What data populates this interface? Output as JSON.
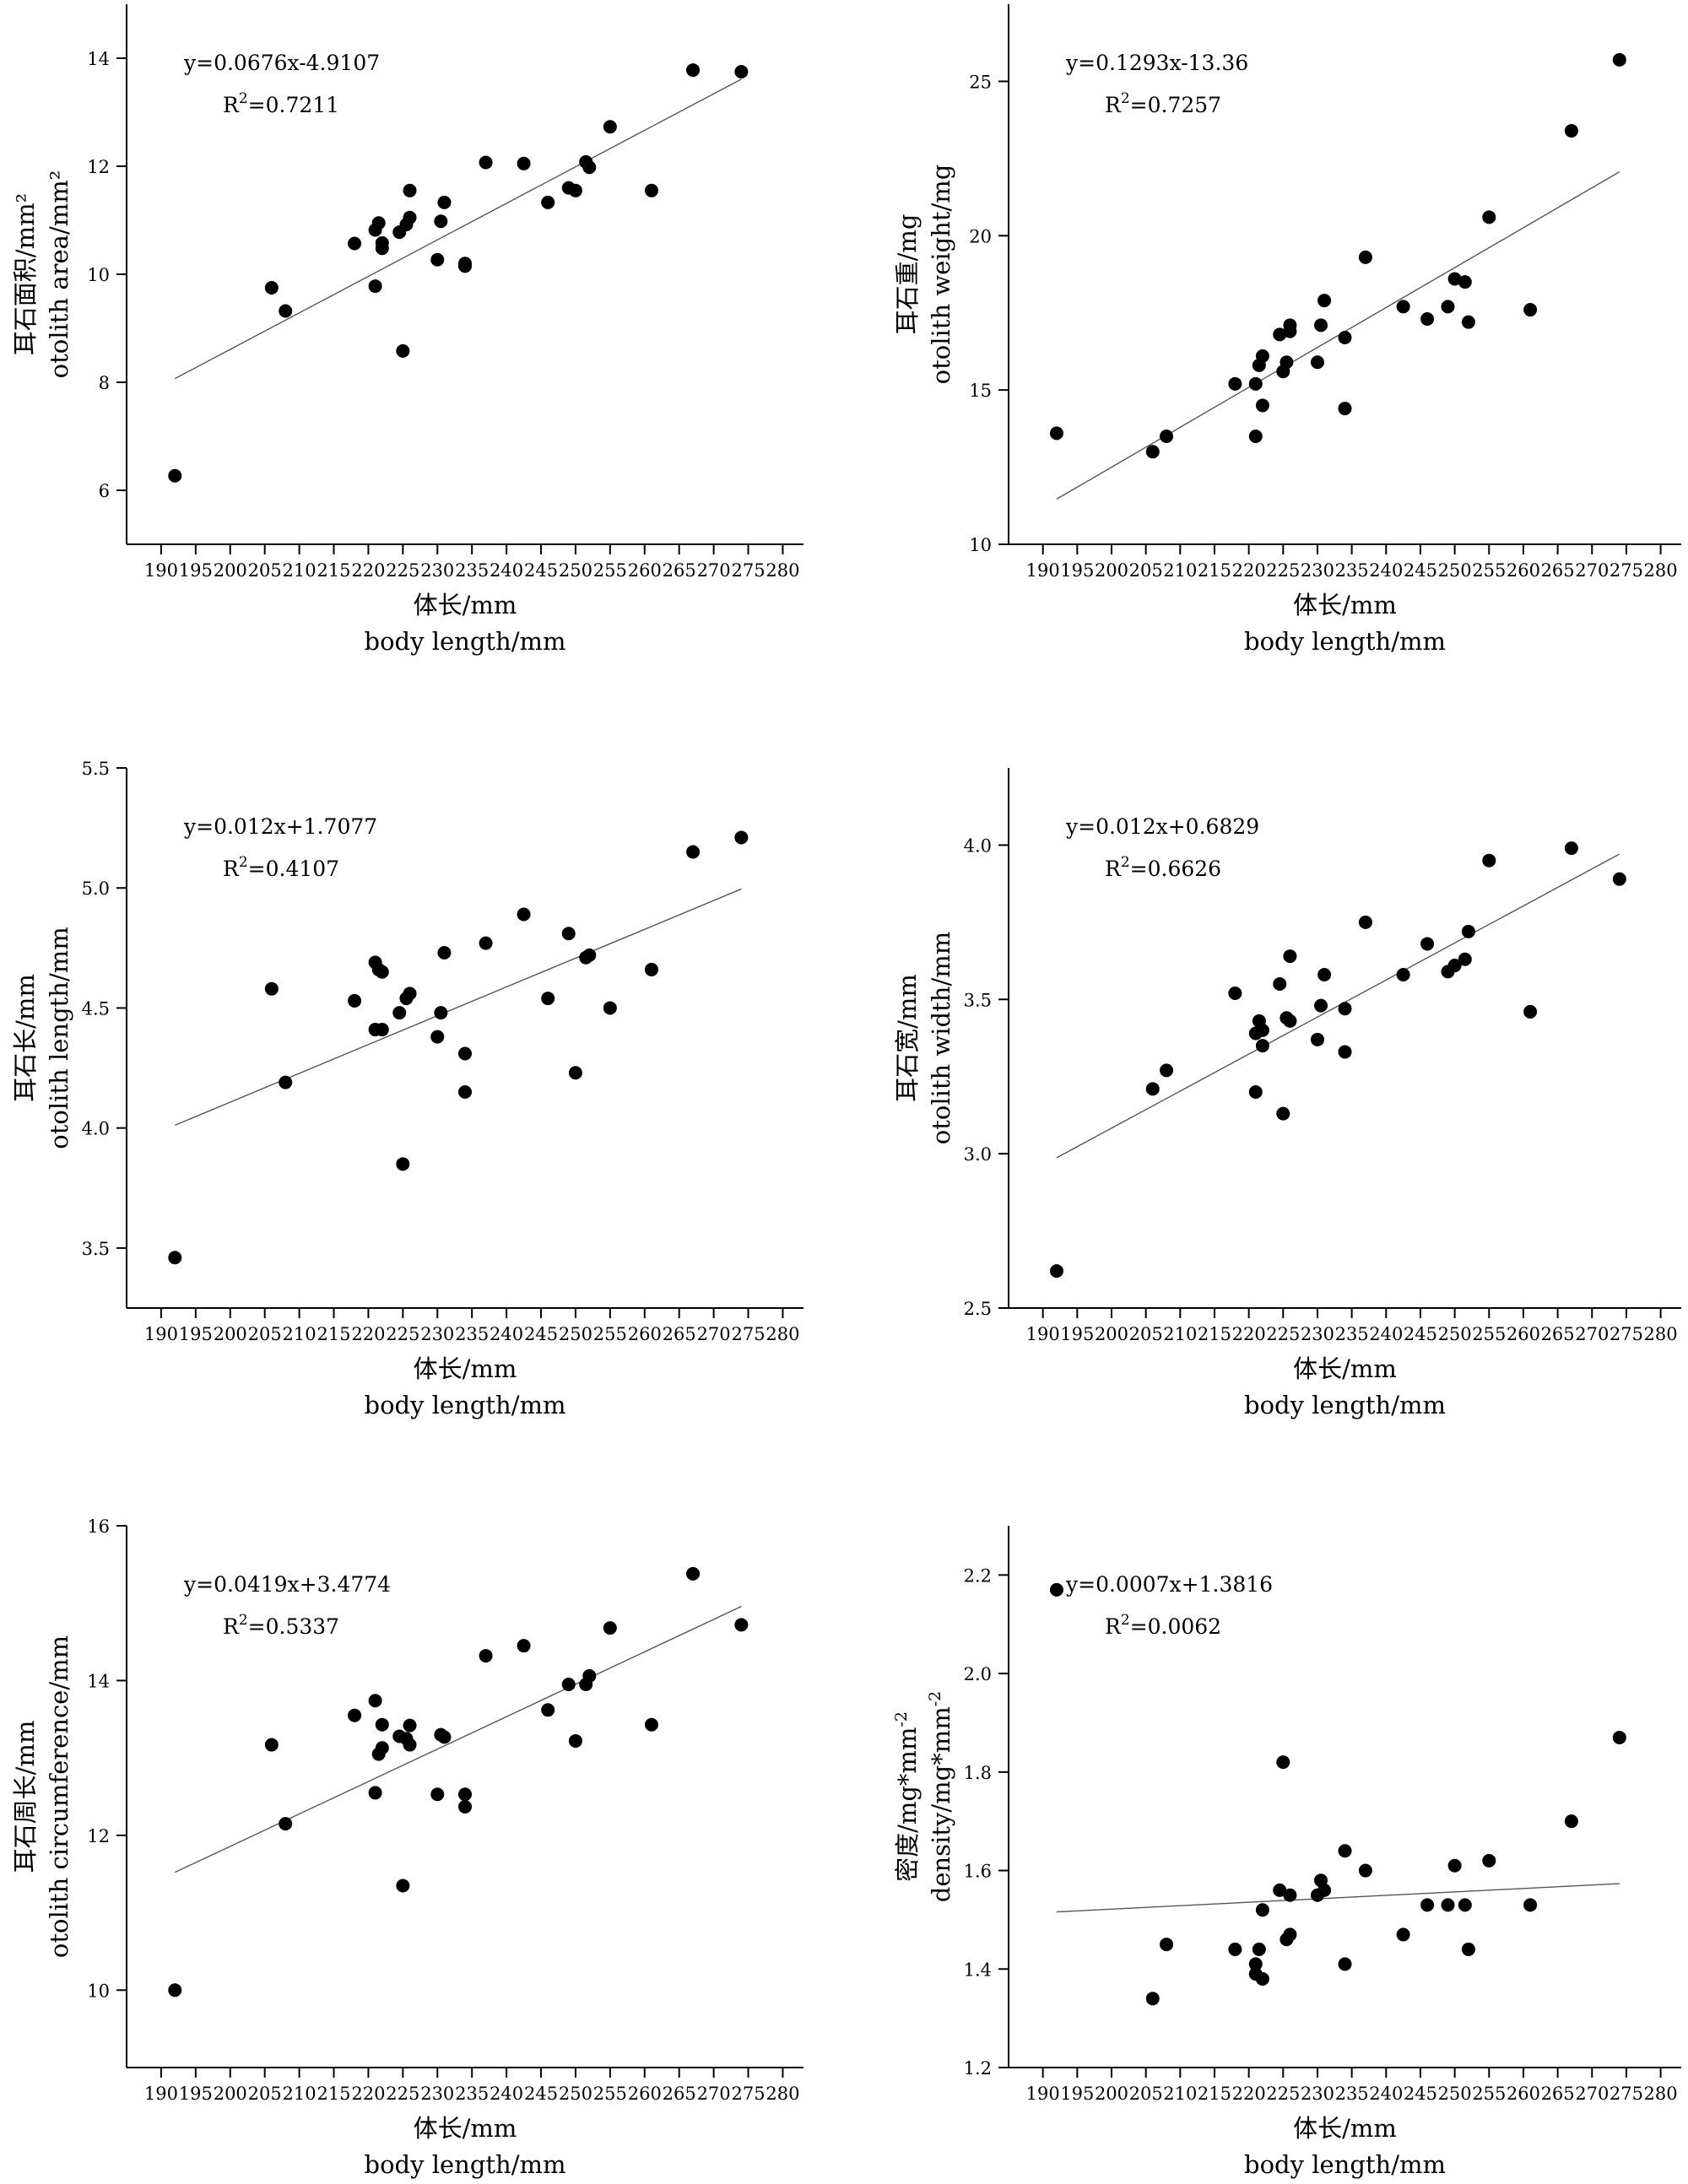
{
  "figure": {
    "x_title_cn": "体长/mm",
    "x_title_en": "body length/mm"
  },
  "chart_data": [
    {
      "type": "scatter",
      "id": "area",
      "ylabel_cn": "耳石面积/mm²",
      "ylabel_en": "otolith area/mm²",
      "xlabel_cn": "体长/mm",
      "xlabel_en": "body length/mm",
      "xlim": [
        185,
        283
      ],
      "ylim": [
        5,
        15
      ],
      "xticks": [
        190,
        195,
        200,
        205,
        210,
        215,
        220,
        225,
        230,
        235,
        240,
        245,
        250,
        255,
        260,
        265,
        270,
        275,
        280
      ],
      "yticks": [
        6,
        8,
        10,
        12,
        14
      ],
      "ytick_labels": [
        "6",
        "8",
        "10",
        "12",
        "14"
      ],
      "equation": "y=0.0676x-4.9107",
      "r2_label": "R",
      "r2_sup": "2",
      "r2_value": "=0.7211",
      "fit": {
        "slope": 0.0676,
        "intercept": -4.9107,
        "x_range": [
          192,
          274
        ]
      },
      "points": [
        [
          192,
          6.27
        ],
        [
          206,
          9.75
        ],
        [
          208,
          9.32
        ],
        [
          218,
          10.57
        ],
        [
          221,
          10.82
        ],
        [
          221,
          9.78
        ],
        [
          221.5,
          10.95
        ],
        [
          222,
          10.58
        ],
        [
          222,
          10.48
        ],
        [
          224.5,
          10.78
        ],
        [
          225,
          8.58
        ],
        [
          225.5,
          10.92
        ],
        [
          226,
          11.05
        ],
        [
          226,
          11.55
        ],
        [
          230,
          10.27
        ],
        [
          230.5,
          10.98
        ],
        [
          231,
          11.33
        ],
        [
          234,
          10.15
        ],
        [
          234,
          10.2
        ],
        [
          237,
          12.07
        ],
        [
          242.5,
          12.05
        ],
        [
          246,
          11.33
        ],
        [
          249,
          11.6
        ],
        [
          250,
          11.55
        ],
        [
          251.5,
          12.08
        ],
        [
          252,
          11.98
        ],
        [
          255,
          12.73
        ],
        [
          261,
          11.55
        ],
        [
          267,
          13.78
        ],
        [
          274,
          13.75
        ]
      ]
    },
    {
      "type": "scatter",
      "id": "weight",
      "ylabel_cn": "耳石重/mg",
      "ylabel_en": "otolith weight/mg",
      "xlabel_cn": "体长/mm",
      "xlabel_en": "body length/mm",
      "xlim": [
        185,
        283
      ],
      "ylim": [
        10,
        27.5
      ],
      "xticks": [
        190,
        195,
        200,
        205,
        210,
        215,
        220,
        225,
        230,
        235,
        240,
        245,
        250,
        255,
        260,
        265,
        270,
        275,
        280
      ],
      "yticks": [
        10,
        15,
        20,
        25
      ],
      "ytick_labels": [
        "10",
        "15",
        "20",
        "25"
      ],
      "equation": "y=0.1293x-13.36",
      "r2_label": "R",
      "r2_sup": "2",
      "r2_value": "=0.7257",
      "fit": {
        "slope": 0.1293,
        "intercept": -13.36,
        "x_range": [
          192,
          274
        ]
      },
      "points": [
        [
          192,
          13.6
        ],
        [
          206,
          13.0
        ],
        [
          208,
          13.5
        ],
        [
          218,
          15.2
        ],
        [
          221,
          15.2
        ],
        [
          221,
          13.5
        ],
        [
          221.5,
          15.8
        ],
        [
          222,
          16.1
        ],
        [
          222,
          14.5
        ],
        [
          224.5,
          16.8
        ],
        [
          225,
          15.6
        ],
        [
          225.5,
          15.9
        ],
        [
          226,
          16.9
        ],
        [
          226,
          17.1
        ],
        [
          230,
          15.9
        ],
        [
          230.5,
          17.1
        ],
        [
          231,
          17.9
        ],
        [
          234,
          14.4
        ],
        [
          234,
          16.7
        ],
        [
          237,
          19.3
        ],
        [
          242.5,
          17.7
        ],
        [
          246,
          17.3
        ],
        [
          249,
          17.7
        ],
        [
          250,
          18.6
        ],
        [
          251.5,
          18.5
        ],
        [
          252,
          17.2
        ],
        [
          255,
          20.6
        ],
        [
          261,
          17.6
        ],
        [
          267,
          23.4
        ],
        [
          274,
          25.7
        ]
      ]
    },
    {
      "type": "scatter",
      "id": "length",
      "ylabel_cn": "耳石长/mm",
      "ylabel_en": "otolith length/mm",
      "xlabel_cn": "体长/mm",
      "xlabel_en": "body length/mm",
      "xlim": [
        185,
        283
      ],
      "ylim": [
        3.25,
        5.5
      ],
      "xticks": [
        190,
        195,
        200,
        205,
        210,
        215,
        220,
        225,
        230,
        235,
        240,
        245,
        250,
        255,
        260,
        265,
        270,
        275,
        280
      ],
      "yticks": [
        3.5,
        4.0,
        4.5,
        5.0,
        5.5
      ],
      "ytick_labels": [
        "3.5",
        "4.0",
        "4.5",
        "5.0",
        "5.5"
      ],
      "equation": "y=0.012x+1.7077",
      "r2_label": "R",
      "r2_sup": "2",
      "r2_value": "=0.4107",
      "fit": {
        "slope": 0.012,
        "intercept": 1.7077,
        "x_range": [
          192,
          274
        ]
      },
      "points": [
        [
          192,
          3.46
        ],
        [
          206,
          4.58
        ],
        [
          208,
          4.19
        ],
        [
          218,
          4.53
        ],
        [
          221,
          4.69
        ],
        [
          221,
          4.41
        ],
        [
          221.5,
          4.66
        ],
        [
          222,
          4.65
        ],
        [
          222,
          4.41
        ],
        [
          224.5,
          4.48
        ],
        [
          225,
          3.85
        ],
        [
          225.5,
          4.54
        ],
        [
          226,
          4.56
        ],
        [
          230,
          4.38
        ],
        [
          230.5,
          4.48
        ],
        [
          231,
          4.73
        ],
        [
          234,
          4.31
        ],
        [
          234,
          4.15
        ],
        [
          237,
          4.77
        ],
        [
          242.5,
          4.89
        ],
        [
          246,
          4.54
        ],
        [
          249,
          4.81
        ],
        [
          250,
          4.23
        ],
        [
          251.5,
          4.71
        ],
        [
          252,
          4.72
        ],
        [
          255,
          4.5
        ],
        [
          261,
          4.66
        ],
        [
          267,
          5.15
        ],
        [
          274,
          5.21
        ]
      ]
    },
    {
      "type": "scatter",
      "id": "width",
      "ylabel_cn": "耳石宽/mm",
      "ylabel_en": "otolith width/mm",
      "xlabel_cn": "体长/mm",
      "xlabel_en": "body length/mm",
      "xlim": [
        185,
        283
      ],
      "ylim": [
        2.5,
        4.25
      ],
      "xticks": [
        190,
        195,
        200,
        205,
        210,
        215,
        220,
        225,
        230,
        235,
        240,
        245,
        250,
        255,
        260,
        265,
        270,
        275,
        280
      ],
      "yticks": [
        2.5,
        3.0,
        3.5,
        4.0
      ],
      "ytick_labels": [
        "2.5",
        "3.0",
        "3.5",
        "4.0"
      ],
      "equation": "y=0.012x+0.6829",
      "r2_label": "R",
      "r2_sup": "2",
      "r2_value": "=0.6626",
      "fit": {
        "slope": 0.012,
        "intercept": 0.6829,
        "x_range": [
          192,
          274
        ]
      },
      "points": [
        [
          192,
          2.62
        ],
        [
          206,
          3.21
        ],
        [
          208,
          3.27
        ],
        [
          218,
          3.52
        ],
        [
          221,
          3.39
        ],
        [
          221,
          3.2
        ],
        [
          221.5,
          3.43
        ],
        [
          222,
          3.35
        ],
        [
          222,
          3.4
        ],
        [
          224.5,
          3.55
        ],
        [
          225,
          3.13
        ],
        [
          225.5,
          3.44
        ],
        [
          226,
          3.43
        ],
        [
          226,
          3.64
        ],
        [
          230,
          3.37
        ],
        [
          230.5,
          3.48
        ],
        [
          231,
          3.58
        ],
        [
          234,
          3.47
        ],
        [
          234,
          3.33
        ],
        [
          237,
          3.75
        ],
        [
          242.5,
          3.58
        ],
        [
          246,
          3.68
        ],
        [
          249,
          3.59
        ],
        [
          250,
          3.61
        ],
        [
          251.5,
          3.63
        ],
        [
          252,
          3.72
        ],
        [
          255,
          3.95
        ],
        [
          261,
          3.46
        ],
        [
          267,
          3.99
        ],
        [
          274,
          3.89
        ]
      ]
    },
    {
      "type": "scatter",
      "id": "circumference",
      "ylabel_cn": "耳石周长/mm",
      "ylabel_en": "otolith circumference/mm",
      "xlabel_cn": "体长/mm",
      "xlabel_en": "body length/mm",
      "xlim": [
        185,
        283
      ],
      "ylim": [
        9,
        16
      ],
      "xticks": [
        190,
        195,
        200,
        205,
        210,
        215,
        220,
        225,
        230,
        235,
        240,
        245,
        250,
        255,
        260,
        265,
        270,
        275,
        280
      ],
      "yticks": [
        10,
        12,
        14,
        16
      ],
      "ytick_labels": [
        "10",
        "12",
        "14",
        "16"
      ],
      "equation": "y=0.0419x+3.4774",
      "r2_label": "R",
      "r2_sup": "2",
      "r2_value": "=0.5337",
      "fit": {
        "slope": 0.0419,
        "intercept": 3.4774,
        "x_range": [
          192,
          274
        ]
      },
      "points": [
        [
          192,
          10.0
        ],
        [
          206,
          13.17
        ],
        [
          208,
          12.15
        ],
        [
          218,
          13.55
        ],
        [
          221,
          13.74
        ],
        [
          221,
          12.55
        ],
        [
          221.5,
          13.05
        ],
        [
          222,
          13.43
        ],
        [
          222,
          13.13
        ],
        [
          224.5,
          13.28
        ],
        [
          225,
          11.35
        ],
        [
          225.5,
          13.25
        ],
        [
          226,
          13.17
        ],
        [
          226,
          13.42
        ],
        [
          230,
          12.53
        ],
        [
          230.5,
          13.3
        ],
        [
          231,
          13.27
        ],
        [
          234,
          12.53
        ],
        [
          234,
          12.37
        ],
        [
          237,
          14.32
        ],
        [
          242.5,
          14.45
        ],
        [
          246,
          13.62
        ],
        [
          249,
          13.95
        ],
        [
          250,
          13.22
        ],
        [
          251.5,
          13.95
        ],
        [
          252,
          14.06
        ],
        [
          255,
          14.68
        ],
        [
          261,
          13.43
        ],
        [
          267,
          15.38
        ],
        [
          274,
          14.72
        ]
      ]
    },
    {
      "type": "scatter",
      "id": "density",
      "ylabel_cn": "密度/mg*mm",
      "ylabel_cn_sup": "-2",
      "ylabel_en": "density/mg*mm",
      "ylabel_en_sup": "-2",
      "xlabel_cn": "体长/mm",
      "xlabel_en": "body length/mm",
      "xlim": [
        185,
        283
      ],
      "ylim": [
        1.2,
        2.3
      ],
      "xticks": [
        190,
        195,
        200,
        205,
        210,
        215,
        220,
        225,
        230,
        235,
        240,
        245,
        250,
        255,
        260,
        265,
        270,
        275,
        280
      ],
      "yticks": [
        1.2,
        1.4,
        1.6,
        1.8,
        2.0,
        2.2
      ],
      "ytick_labels": [
        "1.2",
        "1.4",
        "1.6",
        "1.8",
        "2.0",
        "2.2"
      ],
      "equation": "y=0.0007x+1.3816",
      "r2_label": "R",
      "r2_sup": "2",
      "r2_value": "=0.0062",
      "fit": {
        "slope": 0.0007,
        "intercept": 1.3816,
        "x_range": [
          192,
          274
        ]
      },
      "points": [
        [
          192,
          2.17
        ],
        [
          206,
          1.34
        ],
        [
          208,
          1.45
        ],
        [
          218,
          1.44
        ],
        [
          221,
          1.41
        ],
        [
          221,
          1.39
        ],
        [
          221.5,
          1.44
        ],
        [
          222,
          1.38
        ],
        [
          222,
          1.52
        ],
        [
          224.5,
          1.56
        ],
        [
          225,
          1.82
        ],
        [
          225.5,
          1.46
        ],
        [
          226,
          1.47
        ],
        [
          226,
          1.55
        ],
        [
          230,
          1.55
        ],
        [
          230.5,
          1.58
        ],
        [
          231,
          1.56
        ],
        [
          234,
          1.64
        ],
        [
          234,
          1.41
        ],
        [
          237,
          1.6
        ],
        [
          242.5,
          1.47
        ],
        [
          246,
          1.53
        ],
        [
          249,
          1.53
        ],
        [
          250,
          1.61
        ],
        [
          251.5,
          1.53
        ],
        [
          252,
          1.44
        ],
        [
          255,
          1.62
        ],
        [
          261,
          1.53
        ],
        [
          267,
          1.7
        ],
        [
          274,
          1.87
        ]
      ]
    }
  ]
}
